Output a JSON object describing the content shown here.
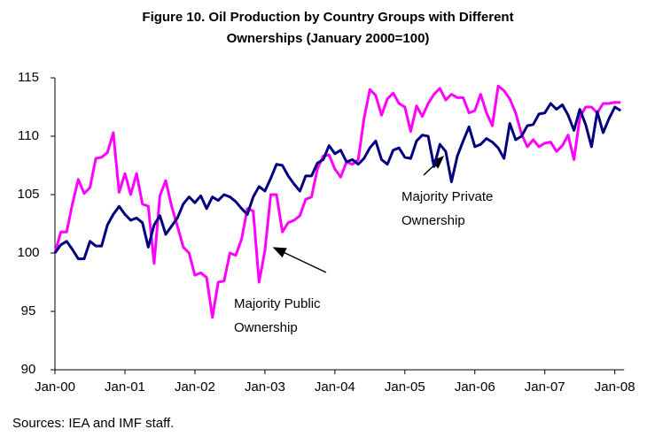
{
  "chart_data": {
    "type": "line",
    "title_lines": [
      "Figure 10. Oil Production by Country Groups with Different",
      "Ownerships (January 2000=100)"
    ],
    "source": "Sources: IEA and IMF staff.",
    "categories": [
      "Jan-00",
      null,
      null,
      null,
      null,
      null,
      null,
      null,
      null,
      null,
      null,
      null,
      "Jan-01",
      null,
      null,
      null,
      null,
      null,
      null,
      null,
      null,
      null,
      null,
      null,
      "Jan-02",
      null,
      null,
      null,
      null,
      null,
      null,
      null,
      null,
      null,
      null,
      null,
      "Jan-03",
      null,
      null,
      null,
      null,
      null,
      null,
      null,
      null,
      null,
      null,
      null,
      "Jan-04",
      null,
      null,
      null,
      null,
      null,
      null,
      null,
      null,
      null,
      null,
      null,
      "Jan-05",
      null,
      null,
      null,
      null,
      null,
      null,
      null,
      null,
      null,
      null,
      null,
      "Jan-06",
      null,
      null,
      null,
      null,
      null,
      null,
      null,
      null,
      null,
      null,
      null,
      "Jan-07",
      null,
      null,
      null,
      null,
      null,
      null,
      null,
      null,
      null,
      null,
      null,
      "Jan-08",
      null
    ],
    "series": [
      {
        "color": "#ff00ff",
        "values": [
          100,
          101.8,
          101.8,
          104.2,
          106.3,
          105.1,
          105.6,
          108.1,
          108.2,
          108.6,
          110.3,
          105.2,
          106.8,
          105.0,
          106.8,
          104.2,
          104.0,
          99.1,
          104.9,
          106.2,
          104.0,
          102.3,
          100.5,
          100.0,
          98.1,
          98.3,
          97.9,
          94.5,
          97.5,
          97.6,
          100.0,
          99.8,
          101.2,
          103.8,
          103.6,
          97.5,
          100.2,
          105.0,
          105.0,
          101.8,
          102.6,
          102.8,
          103.2,
          104.6,
          104.8,
          107.2,
          108.3,
          108.4,
          107.2,
          106.5,
          107.8,
          107.6,
          108.0,
          111.5,
          114.0,
          113.5,
          111.8,
          113.2,
          113.7,
          112.8,
          112.5,
          110.4,
          112.6,
          111.7,
          112.8,
          113.6,
          114.1,
          113.1,
          113.6,
          113.3,
          113.3,
          112.0,
          112.2,
          113.6,
          112.0,
          110.9,
          114.3,
          113.9,
          113.2,
          112.0,
          110.2,
          109.1,
          109.7,
          109.1,
          109.4,
          109.5,
          108.7,
          109.2,
          110.1,
          108.0,
          111.6,
          112.5,
          112.5,
          112.0,
          112.8,
          112.8,
          112.9,
          112.9
        ]
      },
      {
        "color": "#000080",
        "values": [
          100,
          100.7,
          101.0,
          100.3,
          99.5,
          99.5,
          101.0,
          100.6,
          100.6,
          102.4,
          103.3,
          104.0,
          103.3,
          102.8,
          103.0,
          102.6,
          100.5,
          102.4,
          103.2,
          101.6,
          102.3,
          103.0,
          104.2,
          104.8,
          104.3,
          104.9,
          103.8,
          104.8,
          104.5,
          105.0,
          104.8,
          104.4,
          103.8,
          103.3,
          104.8,
          105.7,
          105.3,
          106.4,
          107.6,
          107.5,
          106.6,
          105.9,
          105.3,
          106.6,
          106.6,
          107.7,
          108.0,
          109.2,
          108.5,
          108.8,
          107.8,
          108.0,
          107.6,
          108.1,
          109.0,
          109.6,
          108.0,
          107.6,
          108.8,
          109.0,
          108.2,
          108.1,
          109.6,
          110.1,
          110.0,
          107.4,
          109.3,
          108.7,
          106.1,
          108.3,
          109.6,
          110.8,
          109.1,
          109.3,
          109.8,
          109.5,
          109.0,
          108.1,
          111.1,
          109.7,
          110.0,
          110.9,
          111.0,
          111.9,
          112.0,
          112.8,
          112.3,
          112.7,
          111.8,
          110.5,
          112.3,
          111.0,
          109.1,
          112.1,
          110.3,
          111.5,
          112.5,
          112.2
        ]
      }
    ],
    "annotations": [
      {
        "lines": [
          "Majority Public",
          "Ownership"
        ]
      },
      {
        "lines": [
          "Majority Private",
          "Ownership"
        ]
      }
    ],
    "ylim": [
      90,
      115
    ],
    "yticks": [
      90,
      95,
      100,
      105,
      110,
      115
    ],
    "grid": false
  }
}
